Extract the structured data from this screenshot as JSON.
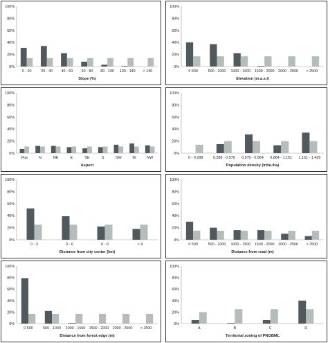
{
  "chart_data": [
    {
      "type": "bar",
      "xlabel": "Slope (%)",
      "categories": [
        "0 - 20",
        "20 - 40",
        "40 - 60",
        "60 - 80",
        "80 - 100",
        "100 - 140",
        "> 140"
      ],
      "series": [
        {
          "color": "#505a5e",
          "values": [
            31,
            34,
            22,
            8,
            3,
            1,
            0
          ]
        },
        {
          "color": "#b4bcbc",
          "values": [
            14,
            14,
            14,
            14,
            14,
            14,
            14
          ]
        }
      ],
      "ylim": [
        0,
        100
      ],
      "yticks": [
        "0%",
        "20%",
        "40%",
        "60%",
        "80%",
        "100%"
      ]
    },
    {
      "type": "bar",
      "xlabel": "Elevation (m.a.s.l)",
      "categories": [
        "0 500",
        "500 - 1000",
        "1000 - 1500",
        "1500 - 2000",
        "2000 - 2500",
        "> 2500"
      ],
      "series": [
        {
          "color": "#505a5e",
          "values": [
            40,
            37,
            22,
            1,
            0,
            0
          ]
        },
        {
          "color": "#b4bcbc",
          "values": [
            17,
            17,
            17,
            17,
            17,
            17
          ]
        }
      ],
      "ylim": [
        0,
        100
      ],
      "yticks": [
        "0%",
        "20%",
        "40%",
        "60%",
        "80%",
        "100%"
      ]
    },
    {
      "type": "bar",
      "xlabel": "Aspect",
      "categories": [
        "Flat",
        "N",
        "NE",
        "E",
        "SE",
        "S",
        "SW",
        "W",
        "NW"
      ],
      "series": [
        {
          "color": "#505a5e",
          "values": [
            7,
            12,
            12,
            10,
            8,
            10,
            14,
            16,
            13
          ]
        },
        {
          "color": "#b4bcbc",
          "values": [
            11,
            11,
            11,
            11,
            11,
            11,
            11,
            11,
            11
          ]
        }
      ],
      "ylim": [
        0,
        100
      ],
      "yticks": [
        "0%",
        "20%",
        "40%",
        "60%",
        "80%",
        "100%"
      ]
    },
    {
      "type": "bar",
      "xlabel": "Population density (inha./ha)",
      "categories": [
        "0 - 0.288",
        "0.288 - 0.576",
        "0.570 - 0.864",
        "0.864 - 1.151",
        "1.151 - 1.439"
      ],
      "series": [
        {
          "color": "#505a5e",
          "values": [
            0,
            15,
            31,
            13,
            34
          ]
        },
        {
          "color": "#b4bcbc",
          "values": [
            14,
            20,
            20,
            20,
            20
          ]
        }
      ],
      "ylim": [
        0,
        100
      ],
      "yticks": [
        "0%",
        "20%",
        "40%",
        "60%",
        "80%",
        "100%"
      ]
    },
    {
      "type": "bar",
      "xlabel": "Distance from city center (km)",
      "categories": [
        "0 - 3",
        "3 - 6",
        "6 - 9",
        "> 9"
      ],
      "series": [
        {
          "color": "#505a5e",
          "values": [
            52,
            39,
            22,
            18
          ]
        },
        {
          "color": "#b4bcbc",
          "values": [
            25,
            25,
            25,
            25
          ]
        }
      ],
      "ylim": [
        0,
        100
      ],
      "yticks": [
        "0%",
        "20%",
        "40%",
        "60%",
        "80%",
        "100%"
      ]
    },
    {
      "type": "bar",
      "xlabel": "Distance from road (m)",
      "categories": [
        "0 500",
        "500 - 1000",
        "1000 - 1500",
        "1500 - 2000",
        "2000 - 2500",
        "> 2500"
      ],
      "series": [
        {
          "color": "#505a5e",
          "values": [
            30,
            20,
            16,
            16,
            10,
            6
          ]
        },
        {
          "color": "#b4bcbc",
          "values": [
            15,
            15,
            15,
            15,
            15,
            15
          ]
        }
      ],
      "ylim": [
        0,
        100
      ],
      "yticks": [
        "0%",
        "20%",
        "40%",
        "60%",
        "80%",
        "100%"
      ]
    },
    {
      "type": "bar",
      "xlabel": "Distance from forest edge (m)",
      "categories": [
        "0 500",
        "500 - 1000",
        "1000 - 1500",
        "1500 - 2000",
        "2000 - 2500",
        "> 2500"
      ],
      "series": [
        {
          "color": "#505a5e",
          "values": [
            79,
            22,
            1,
            0,
            0,
            0
          ]
        },
        {
          "color": "#b4bcbc",
          "values": [
            17,
            17,
            17,
            17,
            17,
            17
          ]
        }
      ],
      "ylim": [
        0,
        100
      ],
      "yticks": [
        "0%",
        "20%",
        "40%",
        "60%",
        "80%",
        "100%"
      ]
    },
    {
      "type": "bar",
      "xlabel": "Territorial zoning of PNGBML",
      "categories": [
        "A",
        "B",
        "C",
        "D"
      ],
      "series": [
        {
          "color": "#505a5e",
          "values": [
            6,
            1,
            6,
            40
          ]
        },
        {
          "color": "#b4bcbc",
          "values": [
            20,
            25,
            25,
            25
          ]
        }
      ],
      "ylim": [
        0,
        100
      ],
      "yticks": [
        "0%",
        "20%",
        "40%",
        "60%",
        "80%",
        "100%"
      ]
    }
  ]
}
